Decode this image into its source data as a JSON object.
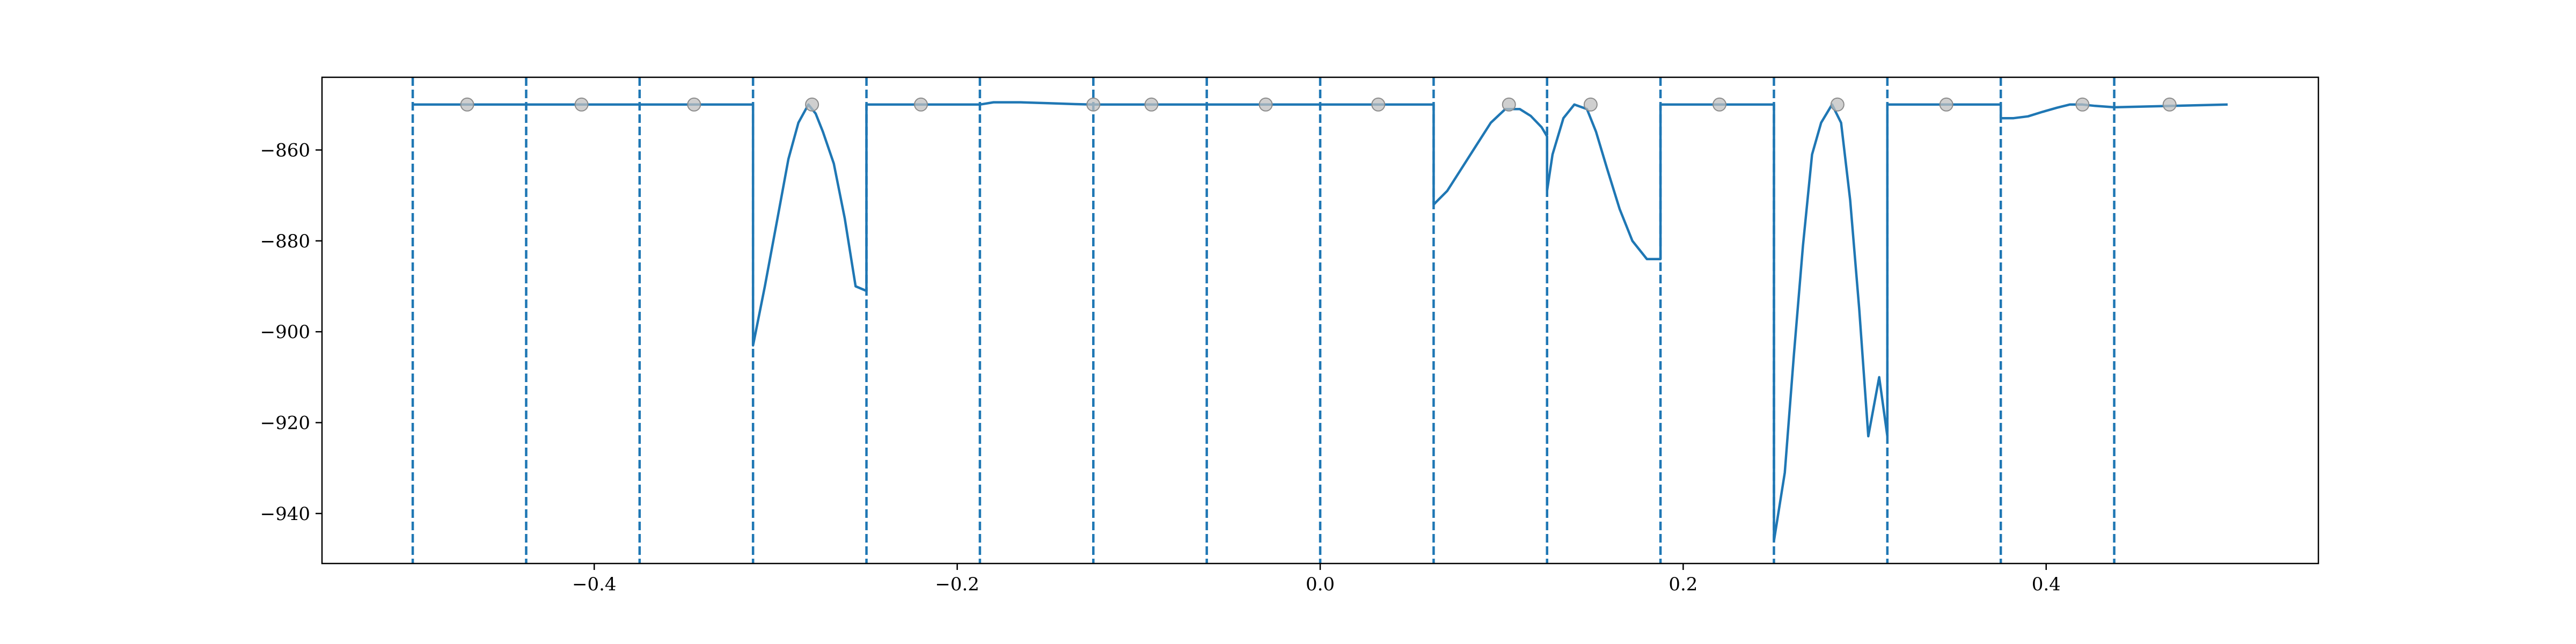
{
  "chart_data": {
    "type": "line",
    "title": "",
    "xlabel": "",
    "ylabel": "",
    "xlim": [
      -0.55,
      0.55
    ],
    "ylim": [
      -951,
      -844
    ],
    "grid": false,
    "legend": "none",
    "colors": {
      "line": "#1f77b4",
      "markers": "#bfbfbf",
      "markers_edge": "#8c8c8c",
      "axes": "#000000"
    },
    "x_ticks": [
      {
        "value": -0.4,
        "label": "−0.4"
      },
      {
        "value": -0.2,
        "label": "−0.2"
      },
      {
        "value": 0.0,
        "label": "0.0"
      },
      {
        "value": 0.2,
        "label": "0.2"
      },
      {
        "value": 0.4,
        "label": "0.4"
      }
    ],
    "y_ticks": [
      {
        "value": -860,
        "label": "−860"
      },
      {
        "value": -880,
        "label": "−880"
      },
      {
        "value": -900,
        "label": "−900"
      },
      {
        "value": -920,
        "label": "−920"
      },
      {
        "value": -940,
        "label": "−940"
      }
    ],
    "boundaries": [
      -0.5,
      -0.4375,
      -0.375,
      -0.3125,
      -0.25,
      -0.1875,
      -0.125,
      -0.0625,
      0.0,
      0.0625,
      0.125,
      0.1875,
      0.25,
      0.3125,
      0.375,
      0.4375
    ],
    "markers": {
      "x": [
        -0.47,
        -0.407,
        -0.345,
        -0.28,
        -0.22,
        -0.125,
        -0.093,
        -0.03,
        0.032,
        0.104,
        0.149,
        0.22,
        0.285,
        0.345,
        0.42,
        0.468
      ],
      "y": [
        -850,
        -850,
        -850,
        -850,
        -850,
        -850,
        -850,
        -850,
        -850,
        -850,
        -850,
        -850,
        -850,
        -850,
        -850,
        -850
      ]
    },
    "series": [
      {
        "x": [
          -0.5,
          -0.3125,
          -0.3125,
          -0.306,
          -0.299,
          -0.293,
          -0.2875,
          -0.282,
          -0.278,
          -0.274,
          -0.268,
          -0.262,
          -0.256,
          -0.25,
          -0.25,
          -0.1875,
          -0.18,
          -0.165,
          -0.15,
          -0.135,
          -0.125,
          0.0625,
          0.0625,
          0.07,
          0.078,
          0.086,
          0.094,
          0.102,
          0.11,
          0.116,
          0.122,
          0.125,
          0.125,
          0.128,
          0.134,
          0.14,
          0.147,
          0.152,
          0.158,
          0.165,
          0.172,
          0.18,
          0.1875,
          0.1875,
          0.25,
          0.25,
          0.256,
          0.261,
          0.266,
          0.271,
          0.276,
          0.282,
          0.287,
          0.292,
          0.297,
          0.302,
          0.308,
          0.3125,
          0.3125,
          0.375,
          0.375,
          0.382,
          0.39,
          0.398,
          0.406,
          0.413,
          0.42,
          0.427,
          0.4375,
          0.5
        ],
        "y": [
          -850,
          -850,
          -903,
          -890,
          -875,
          -862,
          -854,
          -850,
          -852,
          -856,
          -863,
          -875,
          -890,
          -891,
          -850,
          -850,
          -849.5,
          -849.5,
          -849.7,
          -849.9,
          -850,
          -850,
          -872,
          -869,
          -864,
          -859,
          -854,
          -851,
          -851,
          -852.5,
          -855,
          -857,
          -869,
          -861,
          -853,
          -850,
          -851,
          -856,
          -864,
          -873,
          -880,
          -884,
          -884,
          -850,
          -850,
          -946,
          -931,
          -905,
          -881,
          -861,
          -854,
          -850,
          -854,
          -871,
          -895,
          -923,
          -910,
          -923,
          -850,
          -850,
          -853,
          -853,
          -852.6,
          -851.6,
          -850.7,
          -850,
          -850,
          -850.3,
          -850.6,
          -850
        ]
      }
    ]
  }
}
